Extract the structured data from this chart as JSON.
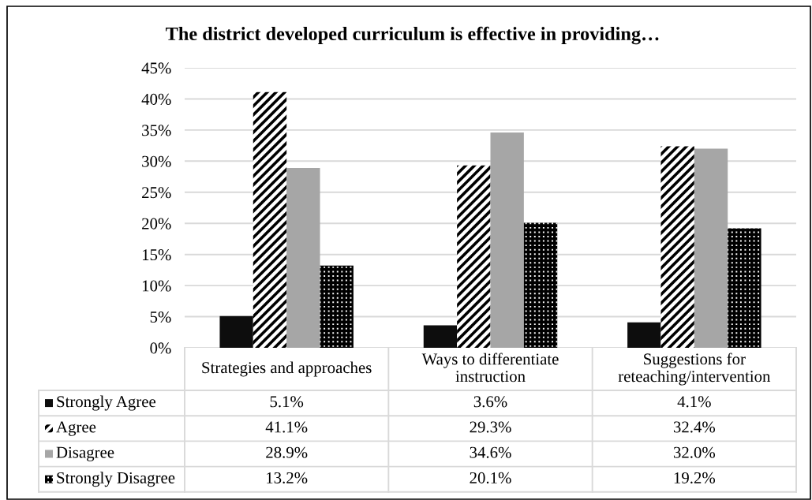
{
  "chart_data": {
    "type": "bar",
    "title": "The district developed curriculum is effective in providing…",
    "categories": [
      "Strategies and approaches",
      "Ways to differentiate instruction",
      "Suggestions for reteaching/intervention"
    ],
    "series": [
      {
        "name": "Strongly Agree",
        "color": "#0d0d0d",
        "values": [
          5.1,
          3.6,
          4.1
        ],
        "value_labels": [
          "5.1%",
          "3.6%",
          "4.1%"
        ]
      },
      {
        "name": "Agree",
        "color": "#000000",
        "values": [
          41.1,
          29.3,
          32.4
        ],
        "value_labels": [
          "41.1%",
          "29.3%",
          "32.4%"
        ]
      },
      {
        "name": "Disagree",
        "color": "#a6a6a6",
        "values": [
          28.9,
          34.6,
          32.0
        ],
        "value_labels": [
          "28.9%",
          "34.6%",
          "32.0%"
        ]
      },
      {
        "name": "Strongly Disagree",
        "color": "#000000",
        "values": [
          13.2,
          20.1,
          19.2
        ],
        "value_labels": [
          "13.2%",
          "20.1%",
          "19.2%"
        ]
      }
    ],
    "ylim": [
      0,
      45
    ],
    "yticks": [
      {
        "value": 0,
        "label": "0%"
      },
      {
        "value": 5,
        "label": "5%"
      },
      {
        "value": 10,
        "label": "10%"
      },
      {
        "value": 15,
        "label": "15%"
      },
      {
        "value": 20,
        "label": "20%"
      },
      {
        "value": 25,
        "label": "25%"
      },
      {
        "value": 30,
        "label": "30%"
      },
      {
        "value": 35,
        "label": "35%"
      },
      {
        "value": 40,
        "label": "40%"
      },
      {
        "value": 45,
        "label": "45%"
      }
    ],
    "grid": "y",
    "legend": "bottom left"
  }
}
